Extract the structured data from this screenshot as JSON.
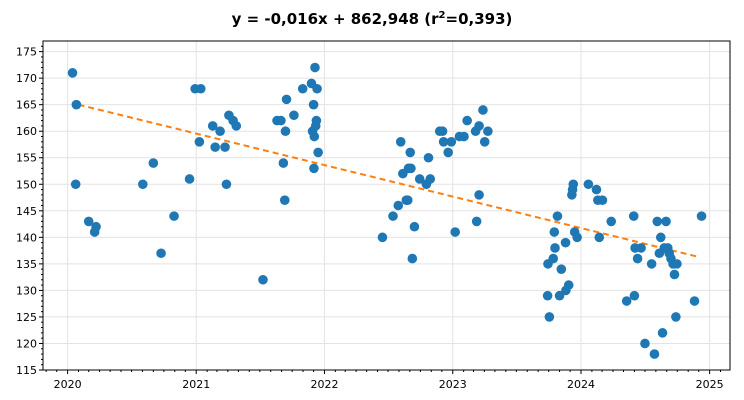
{
  "chart_data": {
    "type": "scatter",
    "title_main": "y = -0,016x + 862,948 (r",
    "title_sup": "2",
    "title_tail": "=0,393)",
    "x_ticks": [
      "2020",
      "2021",
      "2022",
      "2023",
      "2024",
      "2025"
    ],
    "y_ticks": [
      115,
      120,
      125,
      130,
      135,
      140,
      145,
      150,
      155,
      160,
      165,
      170,
      175
    ],
    "xlim": [
      "2019-10-23",
      "2025-02-28"
    ],
    "ylim": [
      115,
      177
    ],
    "grid": true,
    "colors": {
      "points": "#1f77b4",
      "trend": "#ff7f0e"
    },
    "trendline": {
      "x": [
        "2020-02-01",
        "2024-12-01"
      ],
      "y": [
        165.0,
        136.3
      ]
    },
    "points": [
      {
        "x": "2020-01-15",
        "y": 171
      },
      {
        "x": "2020-01-26",
        "y": 165
      },
      {
        "x": "2020-01-24",
        "y": 150
      },
      {
        "x": "2020-03-01",
        "y": 143
      },
      {
        "x": "2020-03-22",
        "y": 142
      },
      {
        "x": "2020-03-18",
        "y": 141
      },
      {
        "x": "2020-08-02",
        "y": 150
      },
      {
        "x": "2020-09-01",
        "y": 154
      },
      {
        "x": "2020-09-23",
        "y": 137
      },
      {
        "x": "2020-10-30",
        "y": 144
      },
      {
        "x": "2020-12-13",
        "y": 151
      },
      {
        "x": "2020-12-29",
        "y": 168
      },
      {
        "x": "2021-01-10",
        "y": 158
      },
      {
        "x": "2021-01-14",
        "y": 168
      },
      {
        "x": "2021-02-17",
        "y": 161
      },
      {
        "x": "2021-02-24",
        "y": 157
      },
      {
        "x": "2021-03-10",
        "y": 160
      },
      {
        "x": "2021-03-24",
        "y": 157
      },
      {
        "x": "2021-03-28",
        "y": 150
      },
      {
        "x": "2021-04-04",
        "y": 163
      },
      {
        "x": "2021-04-16",
        "y": 162
      },
      {
        "x": "2021-04-25",
        "y": 161
      },
      {
        "x": "2021-07-10",
        "y": 132
      },
      {
        "x": "2021-08-19",
        "y": 162
      },
      {
        "x": "2021-08-30",
        "y": 162
      },
      {
        "x": "2021-09-06",
        "y": 154
      },
      {
        "x": "2021-09-12",
        "y": 160
      },
      {
        "x": "2021-09-10",
        "y": 147
      },
      {
        "x": "2021-09-15",
        "y": 166
      },
      {
        "x": "2021-10-06",
        "y": 163
      },
      {
        "x": "2021-10-31",
        "y": 168
      },
      {
        "x": "2021-11-25",
        "y": 169
      },
      {
        "x": "2021-11-28",
        "y": 160
      },
      {
        "x": "2021-12-01",
        "y": 165
      },
      {
        "x": "2021-12-02",
        "y": 153
      },
      {
        "x": "2021-12-03",
        "y": 159
      },
      {
        "x": "2021-12-05",
        "y": 172
      },
      {
        "x": "2021-12-07",
        "y": 161
      },
      {
        "x": "2021-12-09",
        "y": 162
      },
      {
        "x": "2021-12-11",
        "y": 168
      },
      {
        "x": "2021-12-14",
        "y": 156
      },
      {
        "x": "2022-06-15",
        "y": 140
      },
      {
        "x": "2022-07-15",
        "y": 144
      },
      {
        "x": "2022-07-30",
        "y": 146
      },
      {
        "x": "2022-08-06",
        "y": 158
      },
      {
        "x": "2022-08-12",
        "y": 152
      },
      {
        "x": "2022-08-22",
        "y": 147
      },
      {
        "x": "2022-08-26",
        "y": 147
      },
      {
        "x": "2022-08-28",
        "y": 153
      },
      {
        "x": "2022-09-02",
        "y": 156
      },
      {
        "x": "2022-09-04",
        "y": 153
      },
      {
        "x": "2022-09-08",
        "y": 136
      },
      {
        "x": "2022-09-14",
        "y": 142
      },
      {
        "x": "2022-09-29",
        "y": 151
      },
      {
        "x": "2022-10-18",
        "y": 150
      },
      {
        "x": "2022-10-24",
        "y": 155
      },
      {
        "x": "2022-10-29",
        "y": 151
      },
      {
        "x": "2022-11-25",
        "y": 160
      },
      {
        "x": "2022-12-03",
        "y": 160
      },
      {
        "x": "2022-12-06",
        "y": 158
      },
      {
        "x": "2022-12-19",
        "y": 156
      },
      {
        "x": "2022-12-28",
        "y": 158
      },
      {
        "x": "2023-01-08",
        "y": 141
      },
      {
        "x": "2023-01-20",
        "y": 159
      },
      {
        "x": "2023-02-02",
        "y": 159
      },
      {
        "x": "2023-02-11",
        "y": 162
      },
      {
        "x": "2023-03-07",
        "y": 160
      },
      {
        "x": "2023-03-10",
        "y": 143
      },
      {
        "x": "2023-03-17",
        "y": 148
      },
      {
        "x": "2023-03-17",
        "y": 161
      },
      {
        "x": "2023-03-28",
        "y": 164
      },
      {
        "x": "2023-04-02",
        "y": 158
      },
      {
        "x": "2023-04-11",
        "y": 160
      },
      {
        "x": "2023-09-28",
        "y": 129
      },
      {
        "x": "2023-09-29",
        "y": 135
      },
      {
        "x": "2023-10-03",
        "y": 125
      },
      {
        "x": "2023-10-14",
        "y": 136
      },
      {
        "x": "2023-10-17",
        "y": 141
      },
      {
        "x": "2023-10-19",
        "y": 138
      },
      {
        "x": "2023-10-26",
        "y": 144
      },
      {
        "x": "2023-11-01",
        "y": 129
      },
      {
        "x": "2023-11-06",
        "y": 134
      },
      {
        "x": "2023-11-18",
        "y": 139
      },
      {
        "x": "2023-11-19",
        "y": 130
      },
      {
        "x": "2023-11-27",
        "y": 131
      },
      {
        "x": "2023-12-06",
        "y": 148
      },
      {
        "x": "2023-12-08",
        "y": 149
      },
      {
        "x": "2023-12-10",
        "y": 150
      },
      {
        "x": "2023-12-14",
        "y": 141
      },
      {
        "x": "2023-12-21",
        "y": 140
      },
      {
        "x": "2024-01-22",
        "y": 150
      },
      {
        "x": "2024-02-14",
        "y": 149
      },
      {
        "x": "2024-02-18",
        "y": 147
      },
      {
        "x": "2024-02-22",
        "y": 140
      },
      {
        "x": "2024-03-02",
        "y": 147
      },
      {
        "x": "2024-03-27",
        "y": 143
      },
      {
        "x": "2024-05-10",
        "y": 128
      },
      {
        "x": "2024-05-30",
        "y": 144
      },
      {
        "x": "2024-06-01",
        "y": 129
      },
      {
        "x": "2024-06-03",
        "y": 138
      },
      {
        "x": "2024-06-10",
        "y": 136
      },
      {
        "x": "2024-06-20",
        "y": 138
      },
      {
        "x": "2024-07-01",
        "y": 120
      },
      {
        "x": "2024-07-20",
        "y": 135
      },
      {
        "x": "2024-07-28",
        "y": 118
      },
      {
        "x": "2024-08-05",
        "y": 143
      },
      {
        "x": "2024-08-11",
        "y": 137
      },
      {
        "x": "2024-08-15",
        "y": 140
      },
      {
        "x": "2024-08-20",
        "y": 122
      },
      {
        "x": "2024-08-25",
        "y": 138
      },
      {
        "x": "2024-08-30",
        "y": 143
      },
      {
        "x": "2024-09-04",
        "y": 138
      },
      {
        "x": "2024-09-08",
        "y": 137
      },
      {
        "x": "2024-09-13",
        "y": 136
      },
      {
        "x": "2024-09-19",
        "y": 135
      },
      {
        "x": "2024-09-23",
        "y": 133
      },
      {
        "x": "2024-09-27",
        "y": 125
      },
      {
        "x": "2024-09-30",
        "y": 135
      },
      {
        "x": "2024-11-19",
        "y": 128
      },
      {
        "x": "2024-12-09",
        "y": 144
      }
    ]
  }
}
